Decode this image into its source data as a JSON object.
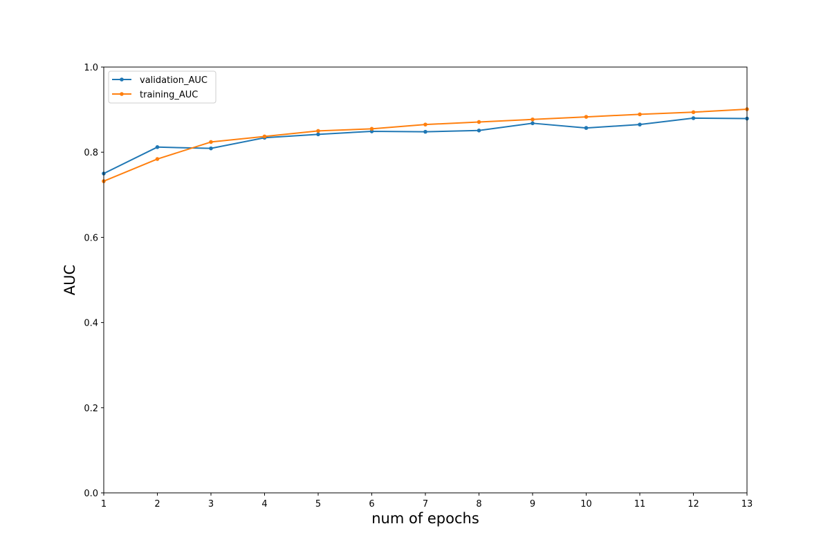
{
  "chart_data": {
    "type": "line",
    "title": "",
    "xlabel": "num of epochs",
    "ylabel": "AUC",
    "xlim": [
      1,
      13
    ],
    "ylim": [
      0.0,
      1.0
    ],
    "x": [
      1,
      2,
      3,
      4,
      5,
      6,
      7,
      8,
      9,
      10,
      11,
      12,
      13
    ],
    "xticks": [
      "1",
      "2",
      "3",
      "4",
      "5",
      "6",
      "7",
      "8",
      "9",
      "10",
      "11",
      "12",
      "13"
    ],
    "yticks": [
      "0.0",
      "0.2",
      "0.4",
      "0.6",
      "0.8",
      "1.0"
    ],
    "grid": false,
    "legend_position": "top-left",
    "series": [
      {
        "name": "validation_AUC",
        "color": "#1f77b4",
        "marker": "dot",
        "values": [
          0.75,
          0.812,
          0.809,
          0.834,
          0.842,
          0.849,
          0.848,
          0.851,
          0.868,
          0.857,
          0.865,
          0.88,
          0.879
        ]
      },
      {
        "name": "training_AUC",
        "color": "#ff7f0e",
        "marker": "dot",
        "values": [
          0.732,
          0.784,
          0.824,
          0.837,
          0.85,
          0.855,
          0.865,
          0.871,
          0.877,
          0.883,
          0.889,
          0.894,
          0.901
        ]
      }
    ]
  }
}
